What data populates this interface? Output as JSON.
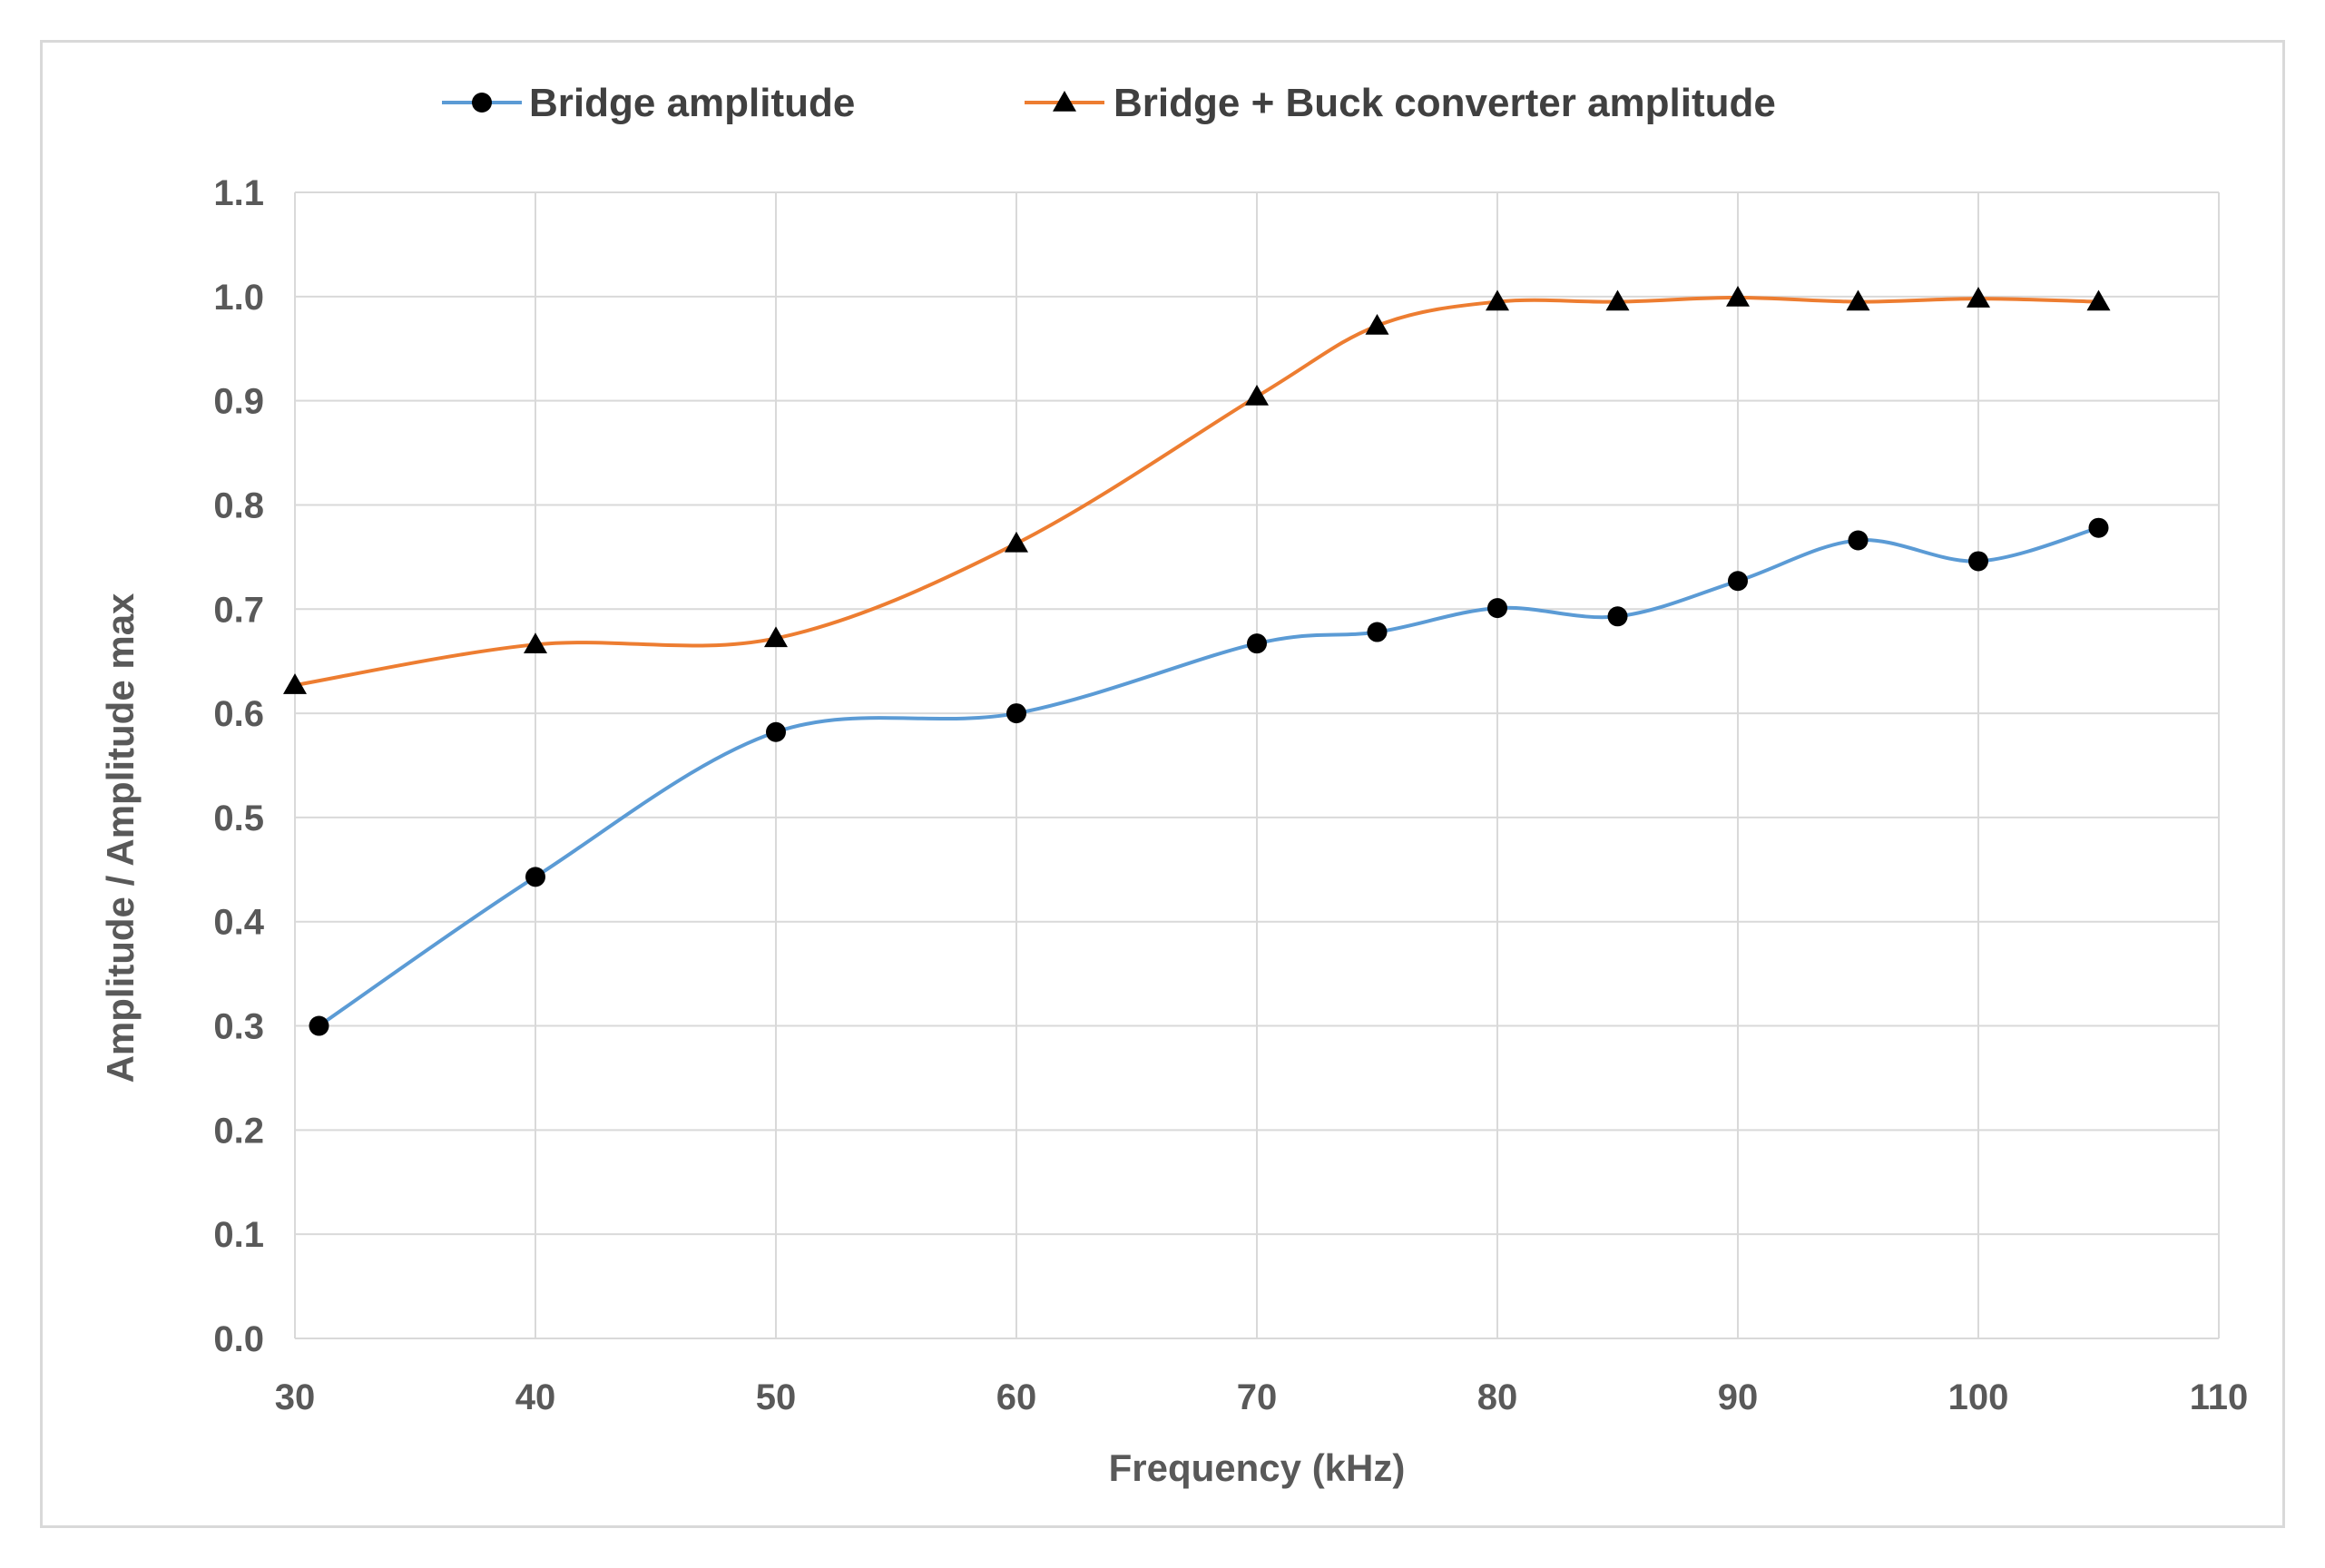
{
  "chart_data": {
    "type": "line",
    "title": "",
    "xlabel": "Frequency (kHz)",
    "ylabel": "Amplitude / Amplitude max",
    "xlim": [
      30,
      110
    ],
    "ylim": [
      0.0,
      1.1
    ],
    "x_ticks": [
      "30",
      "40",
      "50",
      "60",
      "70",
      "80",
      "90",
      "100",
      "110"
    ],
    "y_ticks": [
      "0.0",
      "0.1",
      "0.2",
      "0.3",
      "0.4",
      "0.5",
      "0.6",
      "0.7",
      "0.8",
      "0.9",
      "1.0",
      "1.1"
    ],
    "grid": true,
    "legend_position": "top",
    "series": [
      {
        "name": "Bridge amplitude",
        "color": "#5b9bd5",
        "marker": "circle",
        "smooth": true,
        "x": [
          31,
          40,
          50,
          60,
          70,
          75,
          80,
          85,
          90,
          95,
          100,
          105
        ],
        "y": [
          0.3,
          0.443,
          0.582,
          0.6,
          0.667,
          0.678,
          0.701,
          0.693,
          0.727,
          0.766,
          0.746,
          0.778
        ]
      },
      {
        "name": "Bridge + Buck converter amplitude",
        "color": "#ed7d31",
        "marker": "triangle",
        "smooth": true,
        "x": [
          30,
          40,
          50,
          60,
          70,
          75,
          80,
          85,
          90,
          95,
          100,
          105
        ],
        "y": [
          0.627,
          0.666,
          0.672,
          0.763,
          0.904,
          0.972,
          0.995,
          0.995,
          0.999,
          0.995,
          0.998,
          0.995
        ]
      }
    ]
  }
}
